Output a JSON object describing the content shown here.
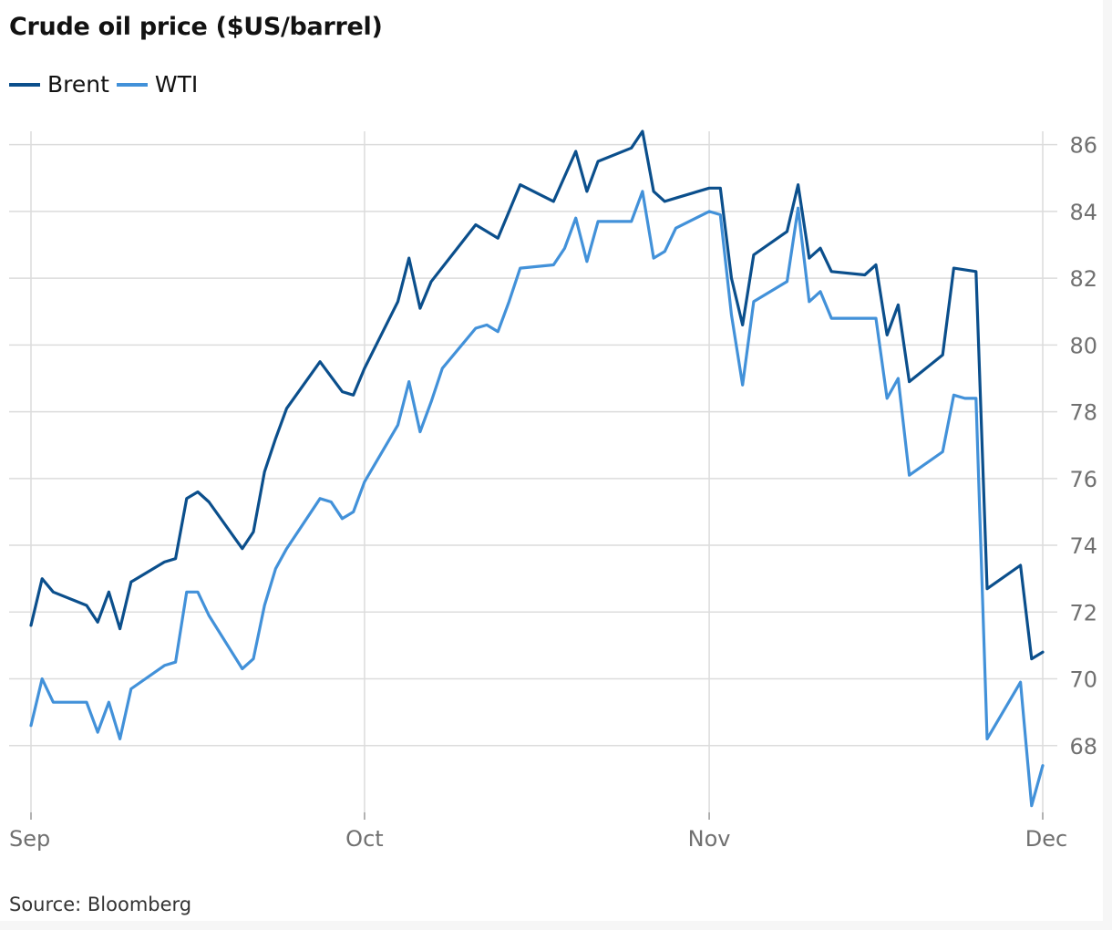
{
  "chart_data": {
    "type": "line",
    "title": "Crude oil price ($US/barrel)",
    "source": "Source: Bloomberg",
    "x_tick_labels": [
      "Sep",
      "Oct",
      "Nov",
      "Dec"
    ],
    "x_tick_days": [
      0,
      30,
      61,
      91
    ],
    "ylim": [
      66,
      86.4
    ],
    "y_ticks": [
      68,
      70,
      72,
      74,
      76,
      78,
      80,
      82,
      84,
      86
    ],
    "legend_position": "top-left",
    "grid": true,
    "x_unit": "days since Sep 1",
    "series": [
      {
        "name": "Brent",
        "color": "#0b4f8c",
        "points": [
          [
            0,
            71.6
          ],
          [
            1,
            73.0
          ],
          [
            2,
            72.6
          ],
          [
            5,
            72.2
          ],
          [
            6,
            71.7
          ],
          [
            7,
            72.6
          ],
          [
            8,
            71.5
          ],
          [
            9,
            72.9
          ],
          [
            12,
            73.5
          ],
          [
            13,
            73.6
          ],
          [
            14,
            75.4
          ],
          [
            15,
            75.6
          ],
          [
            16,
            75.3
          ],
          [
            19,
            73.9
          ],
          [
            20,
            74.4
          ],
          [
            21,
            76.2
          ],
          [
            22,
            77.2
          ],
          [
            23,
            78.1
          ],
          [
            26,
            79.5
          ],
          [
            28,
            78.6
          ],
          [
            29,
            78.5
          ],
          [
            30,
            79.3
          ],
          [
            33,
            81.3
          ],
          [
            34,
            82.6
          ],
          [
            35,
            81.1
          ],
          [
            36,
            81.9
          ],
          [
            40,
            83.6
          ],
          [
            42,
            83.2
          ],
          [
            44,
            84.8
          ],
          [
            47,
            84.3
          ],
          [
            49,
            85.8
          ],
          [
            50,
            84.6
          ],
          [
            51,
            85.5
          ],
          [
            54,
            85.9
          ],
          [
            55,
            86.4
          ],
          [
            56,
            84.6
          ],
          [
            57,
            84.3
          ],
          [
            58,
            84.4
          ],
          [
            61,
            84.7
          ],
          [
            62,
            84.7
          ],
          [
            63,
            82.0
          ],
          [
            64,
            80.6
          ],
          [
            65,
            82.7
          ],
          [
            68,
            83.4
          ],
          [
            69,
            84.8
          ],
          [
            70,
            82.6
          ],
          [
            71,
            82.9
          ],
          [
            72,
            82.2
          ],
          [
            75,
            82.1
          ],
          [
            76,
            82.4
          ],
          [
            77,
            80.3
          ],
          [
            78,
            81.2
          ],
          [
            79,
            78.9
          ],
          [
            82,
            79.7
          ],
          [
            83,
            82.3
          ],
          [
            85,
            82.2
          ],
          [
            86,
            72.7
          ],
          [
            89,
            73.4
          ],
          [
            90,
            70.6
          ],
          [
            91,
            70.8
          ]
        ]
      },
      {
        "name": "WTI",
        "color": "#4291d9",
        "points": [
          [
            0,
            68.6
          ],
          [
            1,
            70.0
          ],
          [
            2,
            69.3
          ],
          [
            5,
            69.3
          ],
          [
            6,
            68.4
          ],
          [
            7,
            69.3
          ],
          [
            8,
            68.2
          ],
          [
            9,
            69.7
          ],
          [
            12,
            70.4
          ],
          [
            13,
            70.5
          ],
          [
            14,
            72.6
          ],
          [
            15,
            72.6
          ],
          [
            16,
            71.9
          ],
          [
            19,
            70.3
          ],
          [
            20,
            70.6
          ],
          [
            21,
            72.2
          ],
          [
            22,
            73.3
          ],
          [
            23,
            73.9
          ],
          [
            26,
            75.4
          ],
          [
            27,
            75.3
          ],
          [
            28,
            74.8
          ],
          [
            29,
            75.0
          ],
          [
            30,
            75.9
          ],
          [
            33,
            77.6
          ],
          [
            34,
            78.9
          ],
          [
            35,
            77.4
          ],
          [
            36,
            78.3
          ],
          [
            37,
            79.3
          ],
          [
            40,
            80.5
          ],
          [
            41,
            80.6
          ],
          [
            42,
            80.4
          ],
          [
            43,
            81.3
          ],
          [
            44,
            82.3
          ],
          [
            47,
            82.4
          ],
          [
            48,
            82.9
          ],
          [
            49,
            83.8
          ],
          [
            50,
            82.5
          ],
          [
            51,
            83.7
          ],
          [
            54,
            83.7
          ],
          [
            55,
            84.6
          ],
          [
            56,
            82.6
          ],
          [
            57,
            82.8
          ],
          [
            58,
            83.5
          ],
          [
            61,
            84.0
          ],
          [
            62,
            83.9
          ],
          [
            63,
            80.9
          ],
          [
            64,
            78.8
          ],
          [
            65,
            81.3
          ],
          [
            68,
            81.9
          ],
          [
            69,
            84.1
          ],
          [
            70,
            81.3
          ],
          [
            71,
            81.6
          ],
          [
            72,
            80.8
          ],
          [
            75,
            80.8
          ],
          [
            76,
            80.8
          ],
          [
            77,
            78.4
          ],
          [
            78,
            79.0
          ],
          [
            79,
            76.1
          ],
          [
            82,
            76.8
          ],
          [
            83,
            78.5
          ],
          [
            84,
            78.4
          ],
          [
            85,
            78.4
          ],
          [
            86,
            68.2
          ],
          [
            89,
            69.9
          ],
          [
            90,
            66.2
          ],
          [
            91,
            67.4
          ]
        ]
      }
    ]
  }
}
